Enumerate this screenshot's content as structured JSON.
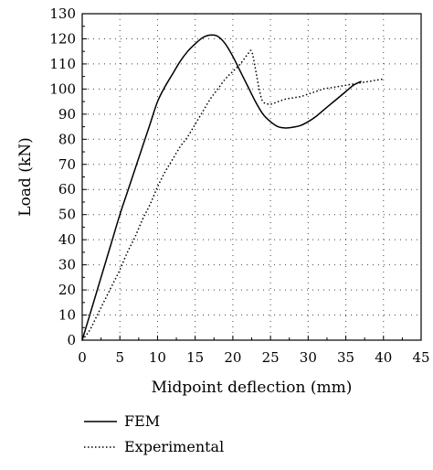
{
  "chart_data": {
    "type": "line",
    "xlabel": "Midpoint deflection (mm)",
    "ylabel": "Load (kN)",
    "xlim": [
      0,
      45
    ],
    "ylim": [
      0,
      130
    ],
    "x_ticks": [
      0,
      5,
      10,
      15,
      20,
      25,
      30,
      35,
      40,
      45
    ],
    "y_ticks": [
      0,
      10,
      20,
      30,
      40,
      50,
      60,
      70,
      80,
      90,
      100,
      110,
      120,
      130
    ],
    "x_tick_labels": [
      "0",
      "5",
      "10",
      "15",
      "20",
      "25",
      "30",
      "35",
      "40",
      "45"
    ],
    "y_tick_labels": [
      "0",
      "10",
      "20",
      "30",
      "40",
      "50",
      "60",
      "70",
      "80",
      "90",
      "100",
      "110",
      "120",
      "130"
    ],
    "grid": "dotted",
    "legend_position": "below",
    "series": [
      {
        "name": "FEM",
        "style": "solid",
        "color": "#000000",
        "x": [
          0,
          1,
          2,
          3,
          4,
          5,
          6,
          7,
          8,
          9,
          10,
          11,
          12,
          13,
          14,
          15,
          16,
          17,
          18,
          19,
          20,
          21,
          22,
          23,
          24,
          25,
          26,
          27,
          28,
          29,
          30,
          31,
          32,
          33,
          34,
          35,
          36,
          37
        ],
        "y": [
          0,
          10,
          20,
          30,
          40,
          50,
          59,
          68,
          77,
          86,
          95,
          101,
          106,
          111,
          115,
          118,
          120.5,
          121.5,
          121,
          118,
          113,
          107,
          101,
          95,
          90,
          87,
          85,
          84.5,
          84.8,
          85.5,
          87,
          89,
          91.5,
          94,
          96.5,
          99,
          101.5,
          103
        ]
      },
      {
        "name": "Experimental",
        "style": "dotted",
        "color": "#000000",
        "x": [
          0,
          1,
          2,
          3,
          4,
          5,
          6,
          7,
          8,
          9,
          10,
          11,
          12,
          13,
          14,
          15,
          16,
          17,
          18,
          19,
          20,
          21,
          22,
          22.5,
          23,
          23.5,
          24,
          25,
          26,
          27,
          28,
          29,
          30,
          31,
          32,
          33,
          34,
          35,
          36,
          37,
          38,
          39,
          40
        ],
        "y": [
          0,
          4,
          10,
          16,
          22,
          28,
          35,
          41,
          48,
          54,
          61,
          67,
          72,
          77,
          81,
          86,
          91,
          96,
          100,
          104,
          107,
          110,
          114,
          115,
          108,
          100,
          95,
          94,
          95,
          96,
          96.5,
          97,
          98,
          99,
          100,
          100.5,
          101,
          101.5,
          102,
          102.5,
          103,
          103.5,
          104
        ]
      }
    ]
  }
}
